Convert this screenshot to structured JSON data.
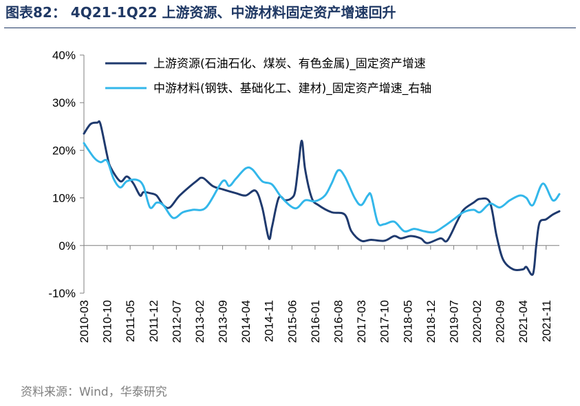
{
  "title": "图表82： 4Q21-1Q22 上游资源、中游材料固定资产增速回升",
  "source": "资料来源：Wind，华泰研究",
  "colors": {
    "upstream": "#1f3a6e",
    "midstream": "#33b7ea",
    "title": "#1f3864",
    "source": "#7f7f7f"
  },
  "chart_data": {
    "type": "line",
    "y_ticks": [
      "40%",
      "30%",
      "20%",
      "10%",
      "0%",
      "-10%"
    ],
    "ylim": [
      -10,
      40
    ],
    "x_ticks": [
      "2010-03",
      "2010-10",
      "2011-05",
      "2011-12",
      "2012-07",
      "2013-02",
      "2013-09",
      "2014-04",
      "2014-11",
      "2015-06",
      "2016-01",
      "2016-08",
      "2017-03",
      "2017-10",
      "2018-05",
      "2018-12",
      "2019-07",
      "2020-02",
      "2020-09",
      "2021-04",
      "2021-11"
    ],
    "xlim": [
      "2010-03",
      "2022-03"
    ],
    "legend_position": "top",
    "series": [
      {
        "name": "上游资源(石油石化、煤炭、有色金属)_固定资产增速",
        "color": "#1f3a6e",
        "points": [
          [
            "2010-03",
            23.5
          ],
          [
            "2010-05",
            25.5
          ],
          [
            "2010-07",
            25.8
          ],
          [
            "2010-08",
            25.5
          ],
          [
            "2010-10",
            19.0
          ],
          [
            "2010-11",
            16.5
          ],
          [
            "2011-02",
            13.5
          ],
          [
            "2011-04",
            14.5
          ],
          [
            "2011-06",
            13.0
          ],
          [
            "2011-08",
            10.5
          ],
          [
            "2011-09",
            11.2
          ],
          [
            "2011-11",
            11.0
          ],
          [
            "2012-01",
            10.5
          ],
          [
            "2012-03",
            8.5
          ],
          [
            "2012-05",
            8.0
          ],
          [
            "2012-08",
            10.5
          ],
          [
            "2013-01",
            13.5
          ],
          [
            "2013-03",
            14.2
          ],
          [
            "2013-06",
            12.5
          ],
          [
            "2013-09",
            11.8
          ],
          [
            "2014-01",
            11.0
          ],
          [
            "2014-04",
            10.5
          ],
          [
            "2014-07",
            11.5
          ],
          [
            "2014-09",
            8.0
          ],
          [
            "2014-11",
            1.5
          ],
          [
            "2014-12",
            4.0
          ],
          [
            "2015-02",
            10.0
          ],
          [
            "2015-04",
            9.5
          ],
          [
            "2015-06",
            10.0
          ],
          [
            "2015-07",
            11.5
          ],
          [
            "2015-08",
            17.0
          ],
          [
            "2015-09",
            22.0
          ],
          [
            "2015-10",
            16.0
          ],
          [
            "2015-12",
            10.0
          ],
          [
            "2016-02",
            8.5
          ],
          [
            "2016-06",
            7.0
          ],
          [
            "2016-10",
            6.5
          ],
          [
            "2016-12",
            3.0
          ],
          [
            "2017-03",
            1.0
          ],
          [
            "2017-06",
            1.2
          ],
          [
            "2017-10",
            1.0
          ],
          [
            "2018-01",
            2.0
          ],
          [
            "2018-03",
            1.5
          ],
          [
            "2018-06",
            2.0
          ],
          [
            "2018-09",
            1.5
          ],
          [
            "2018-11",
            0.5
          ],
          [
            "2019-03",
            1.5
          ],
          [
            "2019-05",
            1.0
          ],
          [
            "2019-08",
            5.0
          ],
          [
            "2019-10",
            7.5
          ],
          [
            "2020-01",
            9.0
          ],
          [
            "2020-03",
            9.8
          ],
          [
            "2020-06",
            9.0
          ],
          [
            "2020-08",
            2.0
          ],
          [
            "2020-10",
            -3.0
          ],
          [
            "2021-01",
            -5.0
          ],
          [
            "2021-04",
            -5.0
          ],
          [
            "2021-05",
            -4.5
          ],
          [
            "2021-07",
            -6.0
          ],
          [
            "2021-08",
            0.0
          ],
          [
            "2021-09",
            4.8
          ],
          [
            "2021-11",
            5.5
          ],
          [
            "2022-01",
            6.5
          ],
          [
            "2022-03",
            7.2
          ]
        ]
      },
      {
        "name": "中游材料(钢铁、基础化工、建材)_固定资产增速_右轴",
        "color": "#33b7ea",
        "points": [
          [
            "2010-03",
            21.5
          ],
          [
            "2010-06",
            18.5
          ],
          [
            "2010-08",
            17.5
          ],
          [
            "2010-10",
            17.8
          ],
          [
            "2010-12",
            14.0
          ],
          [
            "2011-02",
            12.2
          ],
          [
            "2011-04",
            13.5
          ],
          [
            "2011-07",
            13.8
          ],
          [
            "2011-09",
            12.5
          ],
          [
            "2011-11",
            8.0
          ],
          [
            "2012-01",
            9.0
          ],
          [
            "2012-03",
            8.5
          ],
          [
            "2012-06",
            5.8
          ],
          [
            "2012-09",
            7.0
          ],
          [
            "2012-12",
            7.5
          ],
          [
            "2013-04",
            8.0
          ],
          [
            "2013-09",
            13.5
          ],
          [
            "2013-11",
            12.5
          ],
          [
            "2014-01",
            14.0
          ],
          [
            "2014-04",
            16.2
          ],
          [
            "2014-06",
            16.0
          ],
          [
            "2014-09",
            13.5
          ],
          [
            "2014-12",
            12.8
          ],
          [
            "2015-03",
            10.0
          ],
          [
            "2015-07",
            7.8
          ],
          [
            "2015-10",
            9.5
          ],
          [
            "2016-01",
            9.3
          ],
          [
            "2016-04",
            10.5
          ],
          [
            "2016-06",
            13.0
          ],
          [
            "2016-08",
            15.8
          ],
          [
            "2016-10",
            14.5
          ],
          [
            "2017-01",
            10.0
          ],
          [
            "2017-03",
            8.5
          ],
          [
            "2017-05",
            10.5
          ],
          [
            "2017-06",
            10.5
          ],
          [
            "2017-08",
            4.8
          ],
          [
            "2017-10",
            4.5
          ],
          [
            "2018-01",
            5.0
          ],
          [
            "2018-04",
            3.0
          ],
          [
            "2018-07",
            3.5
          ],
          [
            "2018-10",
            3.0
          ],
          [
            "2019-01",
            2.8
          ],
          [
            "2019-04",
            4.0
          ],
          [
            "2019-07",
            5.5
          ],
          [
            "2019-10",
            7.0
          ],
          [
            "2020-01",
            7.5
          ],
          [
            "2020-03",
            7.0
          ],
          [
            "2020-06",
            8.8
          ],
          [
            "2020-09",
            8.0
          ],
          [
            "2020-12",
            9.5
          ],
          [
            "2021-03",
            10.5
          ],
          [
            "2021-05",
            10.0
          ],
          [
            "2021-07",
            8.5
          ],
          [
            "2021-10",
            13.0
          ],
          [
            "2022-01",
            9.5
          ],
          [
            "2022-03",
            10.8
          ]
        ]
      }
    ]
  }
}
